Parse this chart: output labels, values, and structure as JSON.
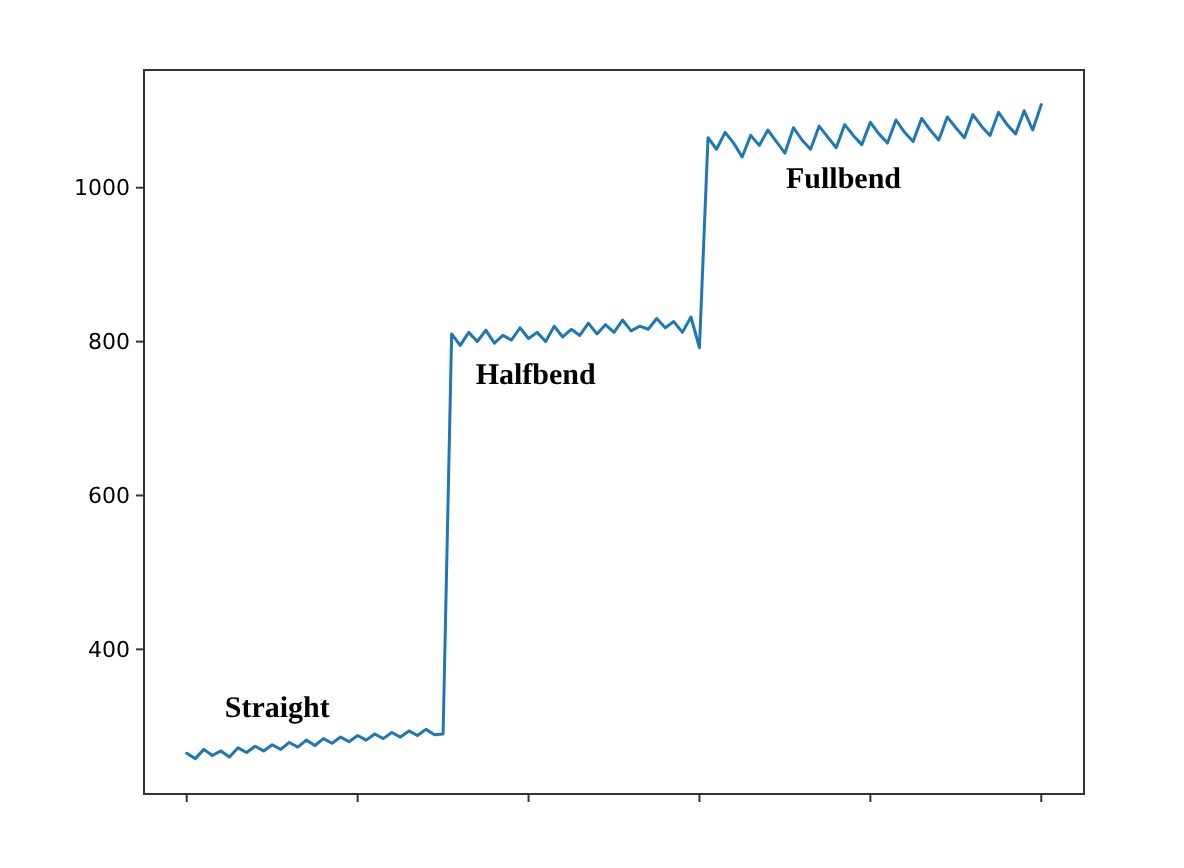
{
  "chart_data": {
    "type": "line",
    "categories": [
      null,
      null,
      null,
      null,
      null,
      null,
      null,
      null,
      null,
      null,
      null,
      null,
      null,
      null,
      null,
      null,
      null,
      null,
      null,
      null,
      null,
      null,
      null,
      null,
      null,
      null,
      null,
      null,
      null,
      null,
      null,
      null,
      null,
      null,
      null,
      null,
      null,
      null,
      null,
      null,
      null,
      null,
      null,
      null,
      null,
      null,
      null,
      null,
      null,
      null,
      null,
      null,
      null,
      null,
      null,
      null,
      null,
      null,
      null,
      null,
      null,
      null,
      null,
      null,
      null,
      null,
      null,
      null,
      null,
      null,
      null,
      null,
      null,
      null,
      null,
      null,
      null,
      null,
      null,
      null,
      null,
      null,
      null,
      null,
      null,
      null,
      null,
      null,
      null,
      null,
      null,
      null,
      null,
      null,
      null,
      null,
      null,
      null,
      null,
      null,
      null
    ],
    "series": [
      {
        "color": "#1f77b4",
        "values": [
          265,
          258,
          270,
          262,
          268,
          260,
          272,
          266,
          274,
          268,
          276,
          270,
          279,
          273,
          282,
          275,
          284,
          278,
          286,
          280,
          288,
          282,
          290,
          284,
          292,
          286,
          294,
          288,
          296,
          289,
          290,
          810,
          795,
          812,
          800,
          815,
          798,
          808,
          802,
          818,
          804,
          812,
          800,
          820,
          806,
          816,
          808,
          824,
          810,
          822,
          812,
          828,
          814,
          820,
          816,
          830,
          818,
          826,
          812,
          832,
          792,
          1065,
          1050,
          1072,
          1058,
          1040,
          1068,
          1055,
          1075,
          1060,
          1045,
          1078,
          1062,
          1050,
          1080,
          1066,
          1052,
          1082,
          1068,
          1056,
          1085,
          1070,
          1058,
          1088,
          1072,
          1060,
          1090,
          1075,
          1062,
          1092,
          1078,
          1065,
          1095,
          1080,
          1068,
          1098,
          1082,
          1070,
          1100,
          1075,
          1108
        ]
      }
    ],
    "ylim": [
      212,
      1153
    ],
    "yticks": [
      400,
      600,
      800,
      1000
    ],
    "annotations": [
      "Straight",
      "Halfbend",
      "Fullbend"
    ]
  }
}
